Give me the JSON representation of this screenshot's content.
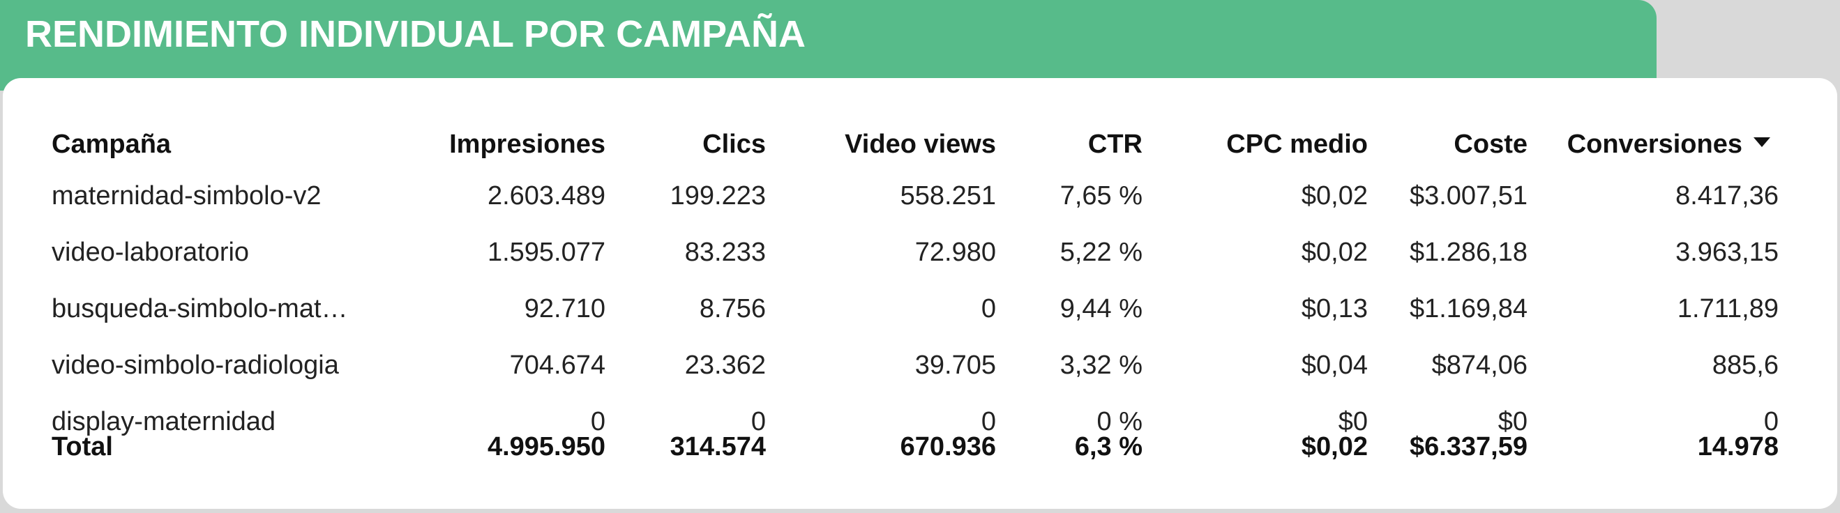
{
  "header": {
    "title": "RENDIMIENTO INDIVIDUAL POR CAMPAÑA"
  },
  "table": {
    "columns": [
      "Campaña",
      "Impresiones",
      "Clics",
      "Video views",
      "CTR",
      "CPC medio",
      "Coste",
      "Conversiones"
    ],
    "rows": [
      [
        "maternidad-simbolo-v2",
        "2.603.489",
        "199.223",
        "558.251",
        "7,65 %",
        "$0,02",
        "$3.007,51",
        "8.417,36"
      ],
      [
        "video-laboratorio",
        "1.595.077",
        "83.233",
        "72.980",
        "5,22 %",
        "$0,02",
        "$1.286,18",
        "3.963,15"
      ],
      [
        "busqueda-simbolo-mat…",
        "92.710",
        "8.756",
        "0",
        "9,44 %",
        "$0,13",
        "$1.169,84",
        "1.711,89"
      ],
      [
        "video-simbolo-radiologia",
        "704.674",
        "23.362",
        "39.705",
        "3,32 %",
        "$0,04",
        "$874,06",
        "885,6"
      ],
      [
        "display-maternidad",
        "0",
        "0",
        "0",
        "0 %",
        "$0",
        "$0",
        "0"
      ]
    ],
    "total": [
      "Total",
      "4.995.950",
      "314.574",
      "670.936",
      "6,3 %",
      "$0,02",
      "$6.337,59",
      "14.978"
    ]
  }
}
